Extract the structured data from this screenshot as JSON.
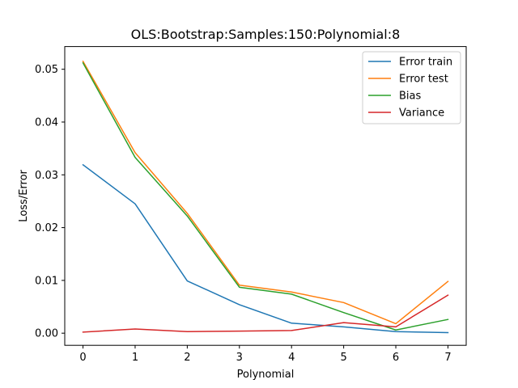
{
  "chart_data": {
    "type": "line",
    "title": "OLS:Bootstrap:Samples:150:Polynomial:8",
    "xlabel": "Polynomial",
    "ylabel": "Loss/Error",
    "x": [
      0,
      1,
      2,
      3,
      4,
      5,
      6,
      7
    ],
    "xlim": [
      -0.35,
      7.35
    ],
    "ylim": [
      -0.0023,
      0.0543
    ],
    "xticks": [
      "0",
      "1",
      "2",
      "3",
      "4",
      "5",
      "6",
      "7"
    ],
    "yticks": [
      0.0,
      0.01,
      0.02,
      0.03,
      0.04,
      0.05
    ],
    "ytick_labels": [
      "0.00",
      "0.01",
      "0.02",
      "0.03",
      "0.04",
      "0.05"
    ],
    "grid": false,
    "legend_position": "top-right",
    "series": [
      {
        "name": "Error train",
        "color": "#1f77b4",
        "values": [
          0.0319,
          0.0245,
          0.0099,
          0.0054,
          0.0019,
          0.0012,
          0.0003,
          0.0001
        ]
      },
      {
        "name": "Error test",
        "color": "#ff7f0e",
        "values": [
          0.0515,
          0.0342,
          0.0227,
          0.0091,
          0.0078,
          0.0058,
          0.0018,
          0.0098
        ]
      },
      {
        "name": "Bias",
        "color": "#2ca02c",
        "values": [
          0.0512,
          0.0333,
          0.0222,
          0.0087,
          0.0074,
          0.0039,
          0.0006,
          0.0026
        ]
      },
      {
        "name": "Variance",
        "color": "#d62728",
        "values": [
          0.0002,
          0.0008,
          0.0003,
          0.0004,
          0.0005,
          0.002,
          0.0012,
          0.0072
        ]
      }
    ]
  }
}
